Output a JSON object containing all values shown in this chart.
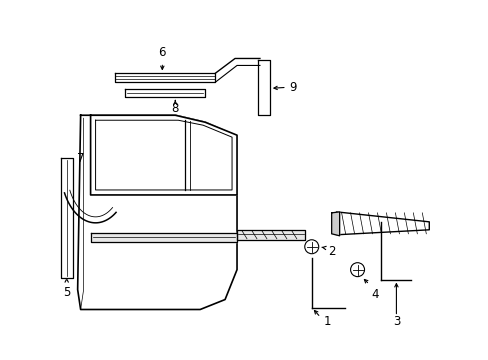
{
  "bg_color": "#ffffff",
  "line_color": "#000000",
  "label_fontsize": 8.5,
  "fig_width": 4.89,
  "fig_height": 3.6,
  "dpi": 100
}
